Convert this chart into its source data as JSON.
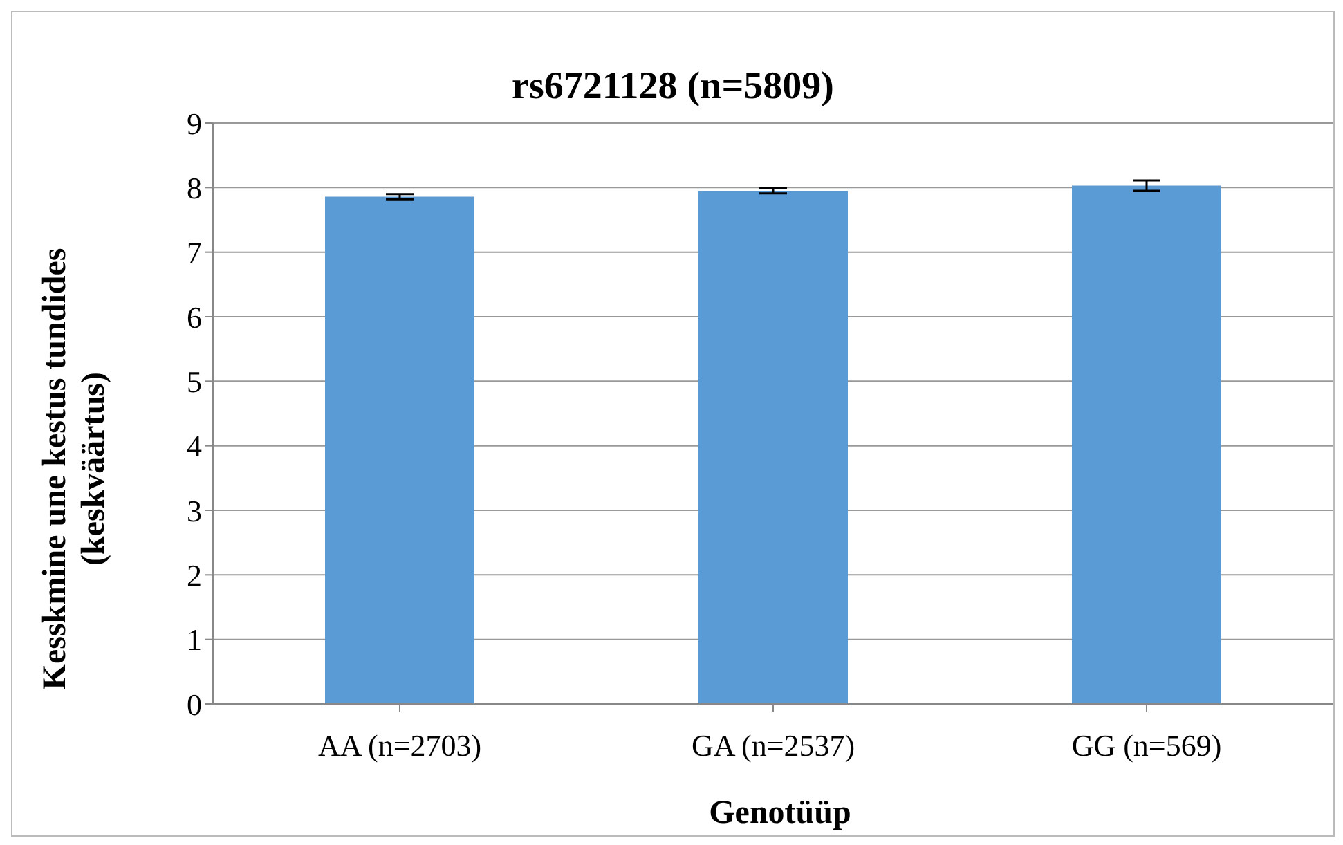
{
  "chart_data": {
    "type": "bar",
    "title": "rs6721128 (n=5809)",
    "xlabel": "Genotüüp",
    "ylabel": "Kesskmine une kestus tundides (keskväärtus)",
    "categories": [
      "AA (n=2703)",
      "GA (n=2537)",
      "GG (n=569)"
    ],
    "values": [
      7.86,
      7.95,
      8.03
    ],
    "errors": [
      0.04,
      0.04,
      0.08
    ],
    "color": "#5b9bd5",
    "ylim": [
      0,
      9
    ],
    "yticks": [
      0,
      1,
      2,
      3,
      4,
      5,
      6,
      7,
      8,
      9
    ],
    "grid": "y"
  }
}
